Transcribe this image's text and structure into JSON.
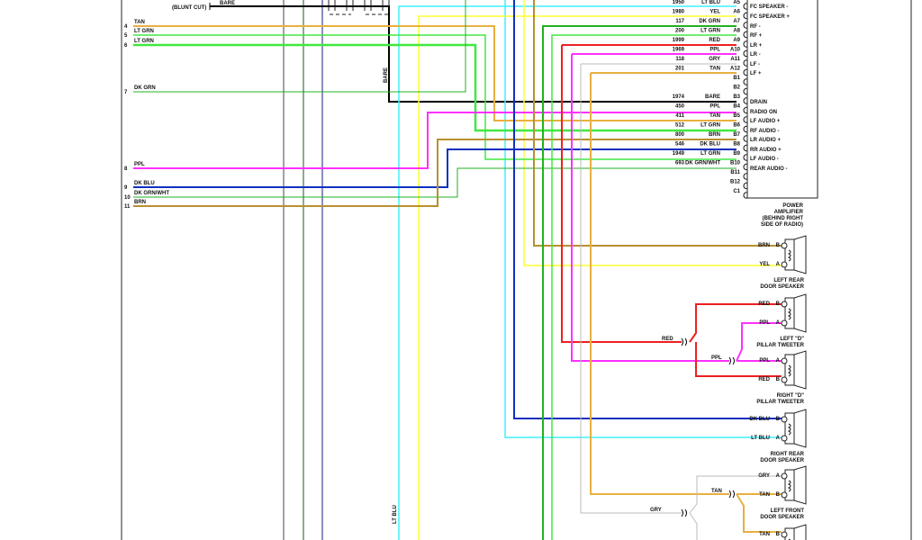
{
  "colors": {
    "cyan": "#3ff0ff",
    "yellow": "#ffff30",
    "tan": "#e8b040",
    "lt_grn": "#40e840",
    "dk_grn": "#22b022",
    "red": "#ee2020",
    "ppl": "#ff30ff",
    "gry": "#bbbbbb",
    "dk_blu": "#1030c0",
    "brn": "#b8902f",
    "bare": "#000000"
  },
  "top_left": {
    "blunt_cut": "(BLUNT CUT)",
    "bare": "BARE",
    "bare_vertical": "BARE",
    "lt_blu_vertical": "LT BLU"
  },
  "left_wires": [
    {
      "pin": "4",
      "label": "TAN"
    },
    {
      "pin": "5",
      "label": "LT GRN"
    },
    {
      "pin": "6",
      "label": "LT GRN"
    },
    {
      "pin": "7",
      "label": "DK GRN"
    },
    {
      "pin": "8",
      "label": "PPL"
    },
    {
      "pin": "9",
      "label": "DK BLU"
    },
    {
      "pin": "10",
      "label": "DK GRN/WHT"
    },
    {
      "pin": "11",
      "label": "BRN"
    }
  ],
  "amplifier": {
    "pins": [
      {
        "circuit": "1950",
        "color": "LT BLU",
        "pin": "A5"
      },
      {
        "circuit": "1980",
        "color": "YEL",
        "pin": "A6"
      },
      {
        "circuit": "117",
        "color": "DK GRN",
        "pin": "A7"
      },
      {
        "circuit": "200",
        "color": "LT GRN",
        "pin": "A8"
      },
      {
        "circuit": "1999",
        "color": "RED",
        "pin": "A9"
      },
      {
        "circuit": "1969",
        "color": "PPL",
        "pin": "A10"
      },
      {
        "circuit": "118",
        "color": "GRY",
        "pin": "A11"
      },
      {
        "circuit": "201",
        "color": "TAN",
        "pin": "A12"
      },
      {
        "circuit": "",
        "color": "",
        "pin": "B1"
      },
      {
        "circuit": "",
        "color": "",
        "pin": "B2"
      },
      {
        "circuit": "1974",
        "color": "BARE",
        "pin": "B3"
      },
      {
        "circuit": "450",
        "color": "PPL",
        "pin": "B4"
      },
      {
        "circuit": "411",
        "color": "TAN",
        "pin": "B5"
      },
      {
        "circuit": "512",
        "color": "LT GRN",
        "pin": "B6"
      },
      {
        "circuit": "800",
        "color": "BRN",
        "pin": "B7"
      },
      {
        "circuit": "546",
        "color": "DK BLU",
        "pin": "B8"
      },
      {
        "circuit": "1949",
        "color": "LT GRN",
        "pin": "B9"
      },
      {
        "circuit": "693",
        "color": "DK GRN/WHT",
        "pin": "B10"
      },
      {
        "circuit": "",
        "color": "",
        "pin": "B11"
      },
      {
        "circuit": "",
        "color": "",
        "pin": "B12"
      },
      {
        "circuit": "",
        "color": "",
        "pin": "C1"
      }
    ],
    "functions": [
      "FC SPEAKER -",
      "FC SPEAKER +",
      "RF -",
      "RF +",
      "LR +",
      "LR -",
      "LF -",
      "LF +",
      "DRAIN",
      "RADIO ON",
      "LF AUDIO +",
      "RF AUDIO -",
      "LR AUDIO +",
      "RR AUDIO +",
      "LF AUDIO -",
      "REAR AUDIO -"
    ],
    "title": [
      "POWER",
      "AMPLIFIER",
      "(BEHIND RIGHT",
      "SIDE OF RADIO)"
    ]
  },
  "speakers": [
    {
      "name": [
        "LEFT REAR",
        "DOOR SPEAKER"
      ],
      "t1": "BRN",
      "p1": "B",
      "t2": "YEL",
      "p2": "A"
    },
    {
      "name": [
        "LEFT \"D\"",
        "PILLAR TWEETER"
      ],
      "t1": "RED",
      "p1": "B",
      "t2": "PPL",
      "p2": "A"
    },
    {
      "name": [
        "RIGHT \"D\"",
        "PILLAR TWEETER"
      ],
      "t1": "PPL",
      "p1": "A",
      "t2": "RED",
      "p2": "B"
    },
    {
      "name": [
        "RIGHT REAR",
        "DOOR SPEAKER"
      ],
      "t1": "DK BLU",
      "p1": "B",
      "t2": "LT BLU",
      "p2": "A"
    },
    {
      "name": [
        "LEFT FRONT",
        "DOOR SPEAKER"
      ],
      "t1": "GRY",
      "p1": "A",
      "t2": "TAN",
      "p2": "B"
    },
    {
      "name": [],
      "t1": "TAN",
      "p1": "B",
      "t2": "",
      "p2": ""
    }
  ],
  "splices": {
    "red": "RED",
    "ppl": "PPL",
    "tan": "TAN",
    "gry": "GRY"
  }
}
